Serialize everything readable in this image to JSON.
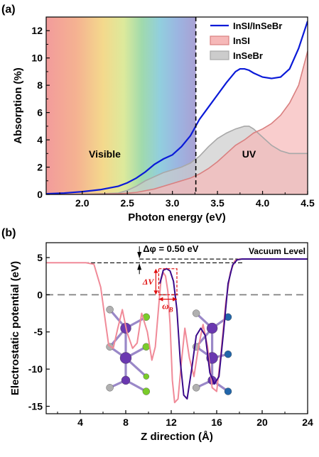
{
  "colors": {
    "hetero": "#0a1ad8",
    "insi_line": "#d98080",
    "insi_fill": "#f6b8b8",
    "insebr_line": "#a8a8a8",
    "insebr_fill": "#cccccc",
    "potential_pink": "#f08a98",
    "potential_purple": "#3a0a8a",
    "vacuum": "#000000",
    "zero": "#808080",
    "annot_red": "#e01010",
    "atom_in": "#6a38b0",
    "atom_s": "#b0b0b0",
    "atom_i": "#7acc2a",
    "atom_br": "#2266aa"
  },
  "chart_data": [
    {
      "panel_label": "(a)",
      "type": "line",
      "xlabel": "Photon energy (eV)",
      "ylabel": "Absorption (%)",
      "xlim": [
        1.6,
        4.5
      ],
      "ylim": [
        0,
        13
      ],
      "xticks": [
        2.0,
        2.5,
        3.0,
        3.5,
        4.0,
        4.5
      ],
      "yticks": [
        0,
        2,
        4,
        6,
        8,
        10,
        12
      ],
      "xtick_labels": [
        "2.0",
        "2.5",
        "3.0",
        "3.5",
        "4.0",
        "4.5"
      ],
      "ytick_labels": [
        "0",
        "2",
        "4",
        "6",
        "8",
        "10",
        "12"
      ],
      "legend_position": "top-right",
      "divider_x": 3.26,
      "region_labels": [
        {
          "text": "Visible",
          "x": 2.25,
          "y": 2.7
        },
        {
          "text": "UV",
          "x": 3.85,
          "y": 2.7
        }
      ],
      "series": [
        {
          "name": "InSI/InSeBr",
          "style": "line",
          "color_key": "hetero",
          "x": [
            1.6,
            1.8,
            2.0,
            2.2,
            2.4,
            2.5,
            2.6,
            2.7,
            2.8,
            2.9,
            3.0,
            3.1,
            3.2,
            3.3,
            3.4,
            3.5,
            3.6,
            3.7,
            3.75,
            3.8,
            3.85,
            3.9,
            4.0,
            4.1,
            4.2,
            4.3,
            4.4,
            4.5
          ],
          "y": [
            0.05,
            0.1,
            0.2,
            0.35,
            0.6,
            0.85,
            1.2,
            1.65,
            2.2,
            2.6,
            2.9,
            3.5,
            4.3,
            5.5,
            6.4,
            7.3,
            8.2,
            9.0,
            9.2,
            9.2,
            9.1,
            8.9,
            8.6,
            8.5,
            8.6,
            9.2,
            10.7,
            12.7
          ]
        },
        {
          "name": "InSI",
          "style": "area",
          "color_key": "insi_line",
          "fill_key": "insi_fill",
          "x": [
            1.6,
            2.0,
            2.4,
            2.6,
            2.8,
            3.0,
            3.2,
            3.3,
            3.4,
            3.5,
            3.6,
            3.7,
            3.8,
            3.9,
            4.0,
            4.1,
            4.2,
            4.3,
            4.4,
            4.5
          ],
          "y": [
            0.0,
            0.0,
            0.05,
            0.15,
            0.4,
            0.8,
            1.2,
            1.5,
            1.9,
            2.4,
            3.0,
            3.6,
            4.0,
            4.5,
            4.8,
            5.2,
            5.8,
            6.7,
            8.0,
            10.5
          ]
        },
        {
          "name": "InSeBr",
          "style": "area",
          "color_key": "insebr_line",
          "fill_key": "insebr_fill",
          "x": [
            1.6,
            2.0,
            2.4,
            2.5,
            2.6,
            2.7,
            2.8,
            2.9,
            3.0,
            3.1,
            3.2,
            3.3,
            3.4,
            3.5,
            3.6,
            3.7,
            3.8,
            3.85,
            3.9,
            4.0,
            4.1,
            4.2,
            4.3,
            4.4,
            4.5
          ],
          "y": [
            0.0,
            0.0,
            0.1,
            0.3,
            0.6,
            1.0,
            1.3,
            1.6,
            1.8,
            2.0,
            2.3,
            2.8,
            3.5,
            4.1,
            4.5,
            4.8,
            5.0,
            5.0,
            4.8,
            4.2,
            3.6,
            3.2,
            3.0,
            3.0,
            3.0
          ]
        }
      ]
    },
    {
      "panel_label": "(b)",
      "type": "line",
      "xlabel": "Z direction (Å)",
      "ylabel": "Electrostatic potential (eV)",
      "xlim": [
        1,
        24
      ],
      "ylim": [
        -16,
        7
      ],
      "xticks": [
        4,
        8,
        12,
        16,
        20,
        24
      ],
      "yticks": [
        -15,
        -10,
        -5,
        0,
        5
      ],
      "xtick_labels": [
        "4",
        "8",
        "12",
        "16",
        "20",
        "24"
      ],
      "ytick_labels": [
        "-15",
        "-10",
        "-5",
        "0",
        "5"
      ],
      "vacuum_label": "Vacuum Level",
      "delta_phi_label": "Δφ = 0.50 eV",
      "delta_v_label": "ΔV",
      "omega_label": "ω",
      "omega_sub": "B",
      "vacuum_levels": [
        4.3,
        4.8
      ],
      "barrier_box": {
        "x": [
          10.9,
          12.5
        ],
        "y": [
          0.0,
          3.5
        ]
      },
      "series": [
        {
          "name": "",
          "color_key": "potential_pink",
          "x": [
            1,
            4.5,
            5.2,
            5.8,
            6.2,
            6.5,
            6.9,
            7.3,
            7.7,
            8.1,
            8.6,
            9.0,
            9.4,
            9.9,
            10.3,
            10.6,
            10.9,
            11.1,
            11.3,
            11.5,
            11.7,
            11.9,
            12.1,
            12.3,
            12.6,
            12.9,
            13.2,
            13.6,
            14.0,
            14.4,
            14.8,
            15.2,
            15.6,
            16.0,
            16.4,
            16.8,
            17.2,
            17.6,
            18.0,
            24
          ],
          "y": [
            4.3,
            4.3,
            4.1,
            1.0,
            -3.5,
            -6.8,
            -7.2,
            -4.5,
            -2.0,
            -5.0,
            -7.2,
            -6.5,
            -2.5,
            -5.0,
            -8.8,
            -7.0,
            -1.5,
            2.0,
            3.0,
            2.5,
            0.5,
            -4.0,
            -11.5,
            -14.5,
            -14.0,
            -9.0,
            -4.5,
            -8.5,
            -11.0,
            -7.0,
            -4.0,
            -7.0,
            -12.5,
            -13.0,
            -7.5,
            -1.0,
            3.0,
            4.6,
            4.8,
            4.8
          ]
        },
        {
          "name": "",
          "color_key": "potential_purple",
          "x": [
            11.0,
            11.3,
            11.6,
            11.9,
            12.2,
            12.5,
            12.8,
            13.1,
            13.4,
            13.8,
            14.2,
            14.6,
            15.0,
            15.4,
            15.8,
            16.2,
            16.6,
            17.0,
            17.4,
            17.8,
            18.2,
            24
          ],
          "y": [
            1.5,
            3.3,
            3.5,
            3.2,
            1.8,
            -2.0,
            -9.0,
            -13.5,
            -14.0,
            -10.0,
            -5.5,
            -4.5,
            -5.5,
            -10.5,
            -12.0,
            -11.0,
            -5.0,
            1.5,
            4.0,
            4.7,
            4.8,
            4.8
          ]
        }
      ]
    }
  ]
}
